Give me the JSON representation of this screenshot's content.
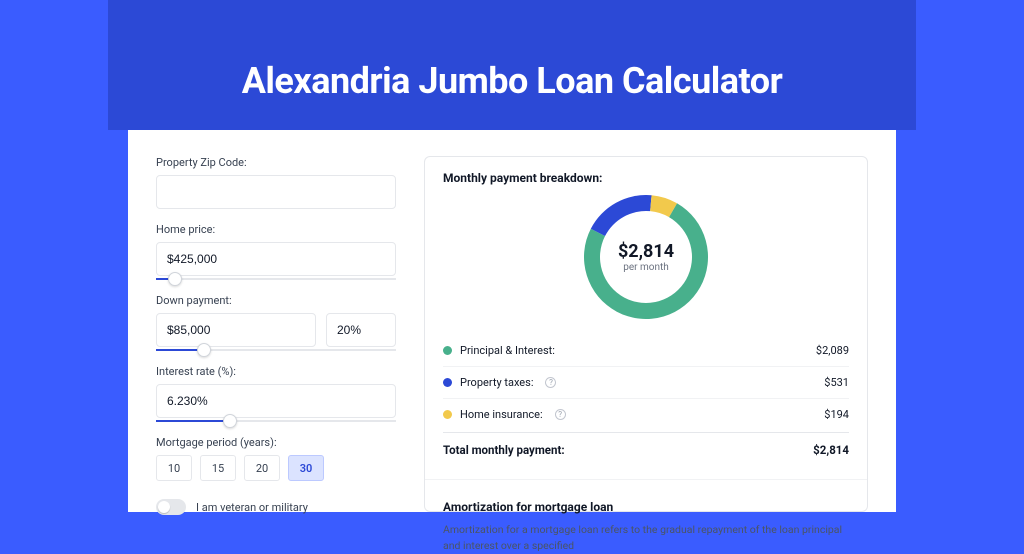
{
  "colors": {
    "page_bg": "#3a5cff",
    "header_band": "#2c49d6",
    "card_bg": "#ffffff",
    "border": "#e5e7eb",
    "text_primary": "#111827",
    "text_secondary": "#374151",
    "muted": "#6b7280"
  },
  "title": "Alexandria Jumbo Loan Calculator",
  "left": {
    "zip": {
      "label": "Property Zip Code:",
      "value": ""
    },
    "home_price": {
      "label": "Home price:",
      "value": "$425,000",
      "slider_pct": 8
    },
    "down_payment": {
      "label": "Down payment:",
      "amount": "$85,000",
      "percent": "20%",
      "slider_pct": 20
    },
    "interest": {
      "label": "Interest rate (%):",
      "value": "6.230%",
      "slider_pct": 31
    },
    "period": {
      "label": "Mortgage period (years):",
      "options": [
        "10",
        "15",
        "20",
        "30"
      ],
      "selected_index": 3
    },
    "veteran": {
      "label": "I am veteran or military",
      "on": false
    }
  },
  "right": {
    "heading": "Monthly payment breakdown:",
    "donut": {
      "amount": "$2,814",
      "sub": "per month",
      "thickness": 16,
      "radius": 62,
      "segments": [
        {
          "name": "Principal & Interest",
          "color": "#48b08c",
          "pct": 74.2
        },
        {
          "name": "Property taxes",
          "color": "#2c49d6",
          "pct": 18.9
        },
        {
          "name": "Home insurance",
          "color": "#f2c94c",
          "pct": 6.9
        }
      ]
    },
    "legend": [
      {
        "dot": "#48b08c",
        "label": "Principal & Interest:",
        "info": false,
        "value": "$2,089"
      },
      {
        "dot": "#2c49d6",
        "label": "Property taxes:",
        "info": true,
        "value": "$531"
      },
      {
        "dot": "#f2c94c",
        "label": "Home insurance:",
        "info": true,
        "value": "$194"
      }
    ],
    "total": {
      "label": "Total monthly payment:",
      "value": "$2,814"
    },
    "amort": {
      "heading": "Amortization for mortgage loan",
      "body": "Amortization for a mortgage loan refers to the gradual repayment of the loan principal and interest over a specified"
    }
  }
}
